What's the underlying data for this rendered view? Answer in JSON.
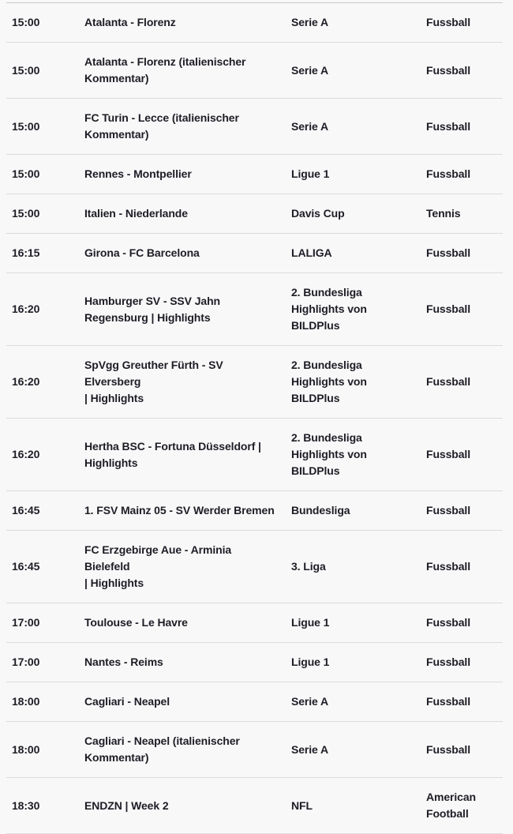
{
  "table": {
    "name": "tv-sport-schedule",
    "colors": {
      "background": "#f8f8f8",
      "text": "#1d1d26",
      "separator": "#dcdcdc",
      "top_border": "#c9c9c9"
    },
    "columns": [
      "time",
      "title",
      "league",
      "sport"
    ],
    "rows": [
      {
        "time": "15:00",
        "title": "Atalanta - Florenz",
        "league": "Serie A",
        "sport": "Fussball"
      },
      {
        "time": "15:00",
        "title": "Atalanta - Florenz (italienischer\nKommentar)",
        "league": "Serie A",
        "sport": "Fussball"
      },
      {
        "time": "15:00",
        "title": "FC Turin - Lecce (italienischer\nKommentar)",
        "league": "Serie A",
        "sport": "Fussball"
      },
      {
        "time": "15:00",
        "title": "Rennes - Montpellier",
        "league": "Ligue 1",
        "sport": "Fussball"
      },
      {
        "time": "15:00",
        "title": "Italien - Niederlande",
        "league": "Davis Cup",
        "sport": "Tennis"
      },
      {
        "time": "16:15",
        "title": "Girona - FC Barcelona",
        "league": "LALIGA",
        "sport": "Fussball"
      },
      {
        "time": "16:20",
        "title": "Hamburger SV - SSV Jahn\nRegensburg | Highlights",
        "league": "2. Bundesliga\nHighlights von\nBILDPlus",
        "sport": "Fussball"
      },
      {
        "time": "16:20",
        "title": "SpVgg Greuther Fürth - SV Elversberg\n| Highlights",
        "league": "2. Bundesliga\nHighlights von\nBILDPlus",
        "sport": "Fussball"
      },
      {
        "time": "16:20",
        "title": "Hertha BSC - Fortuna Düsseldorf |\nHighlights",
        "league": "2. Bundesliga\nHighlights von\nBILDPlus",
        "sport": "Fussball"
      },
      {
        "time": "16:45",
        "title": "1. FSV Mainz 05 - SV Werder Bremen",
        "league": "Bundesliga",
        "sport": "Fussball"
      },
      {
        "time": "16:45",
        "title": "FC Erzgebirge Aue - Arminia Bielefeld\n| Highlights",
        "league": "3. Liga",
        "sport": "Fussball"
      },
      {
        "time": "17:00",
        "title": "Toulouse - Le Havre",
        "league": "Ligue 1",
        "sport": "Fussball"
      },
      {
        "time": "17:00",
        "title": "Nantes - Reims",
        "league": "Ligue 1",
        "sport": "Fussball"
      },
      {
        "time": "18:00",
        "title": "Cagliari - Neapel",
        "league": "Serie A",
        "sport": "Fussball"
      },
      {
        "time": "18:00",
        "title": "Cagliari - Neapel (italienischer\nKommentar)",
        "league": "Serie A",
        "sport": "Fussball"
      },
      {
        "time": "18:30",
        "title": "ENDZN | Week 2",
        "league": "NFL",
        "sport": "American\nFootball"
      }
    ]
  }
}
